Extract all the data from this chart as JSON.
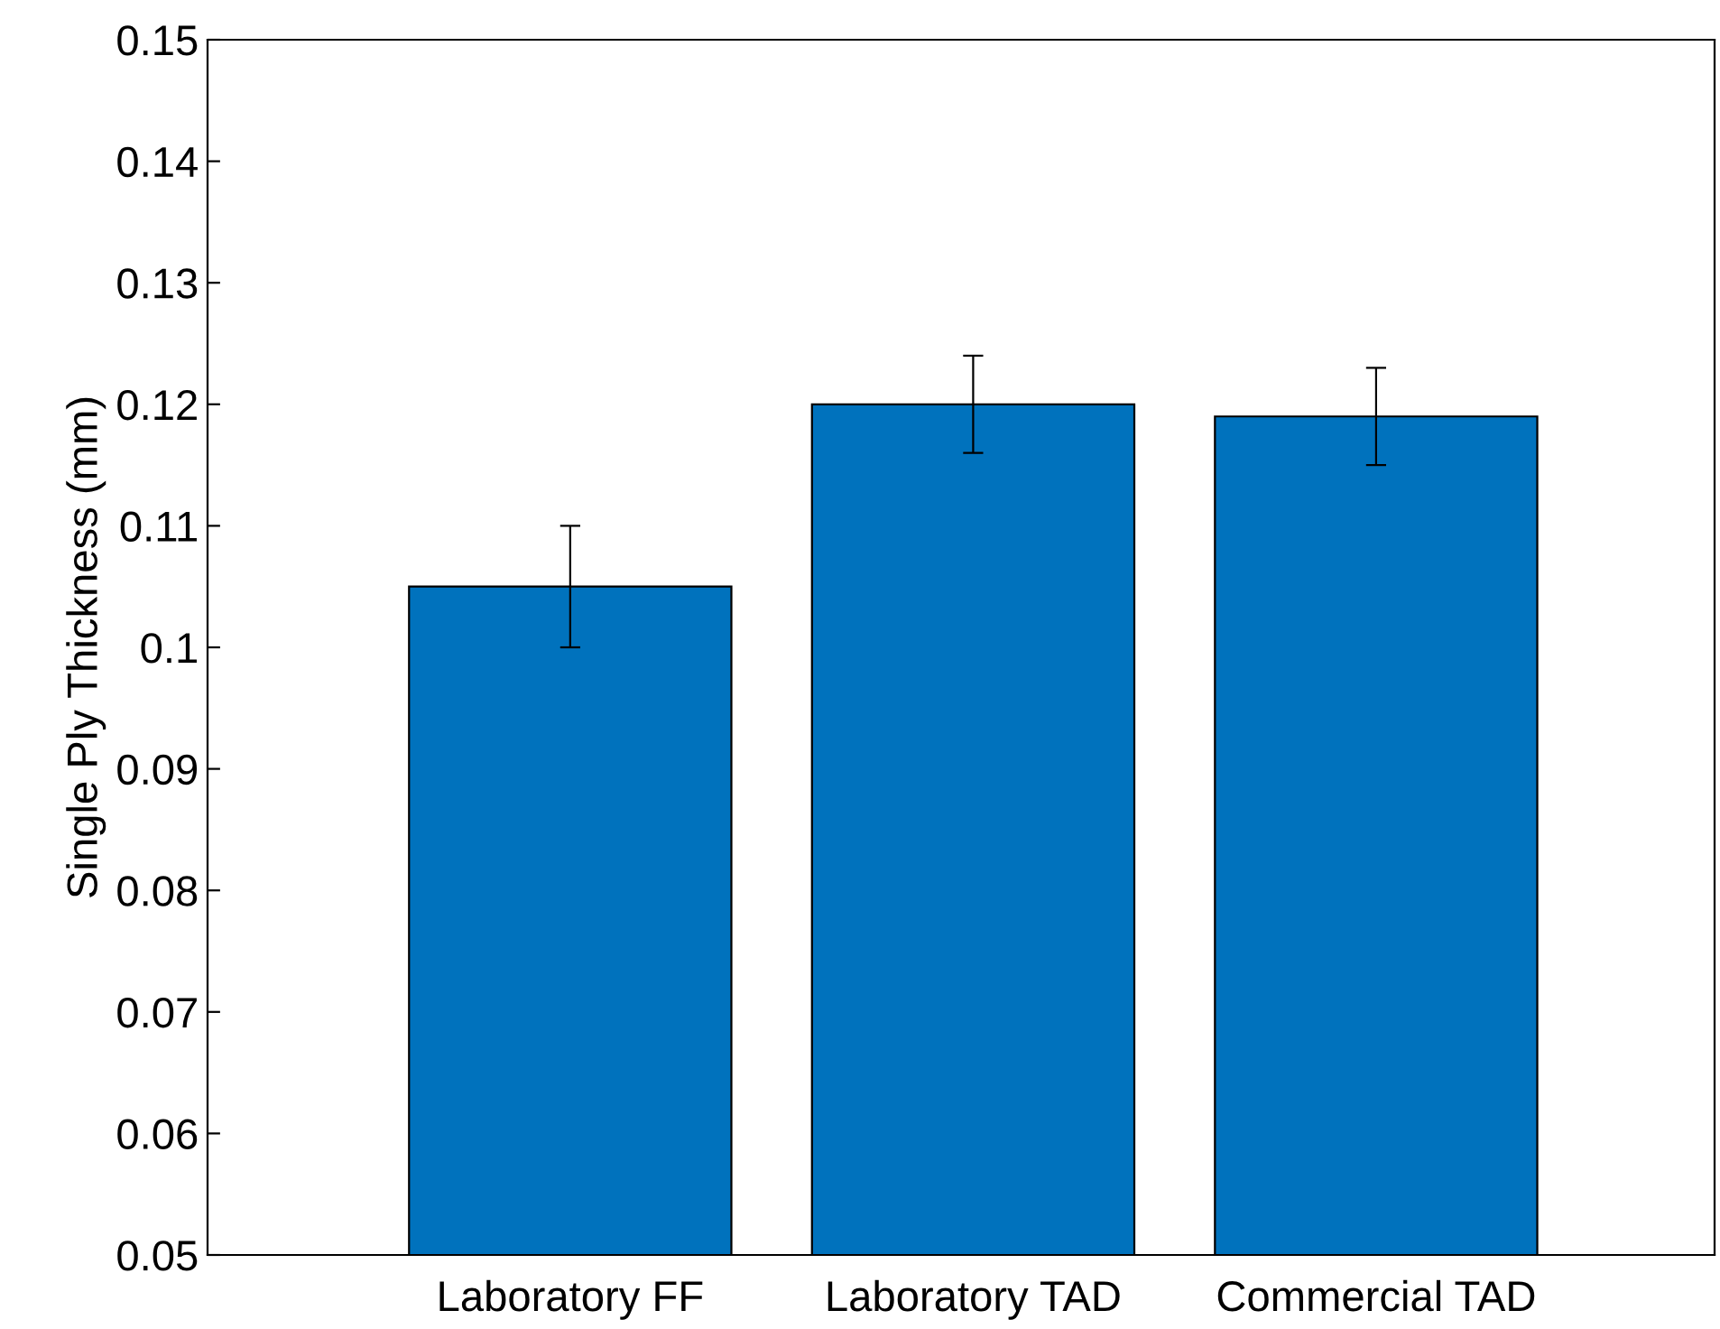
{
  "chart_data": {
    "type": "bar",
    "ylabel": "Single Ply Thickness (mm)",
    "categories": [
      "Laboratory FF",
      "Laboratory TAD",
      "Commercial TAD"
    ],
    "values": [
      0.105,
      0.12,
      0.119
    ],
    "errors": [
      0.005,
      0.004,
      0.004
    ],
    "color": "#0072bd",
    "ylim": [
      0.05,
      0.15
    ],
    "yticks": [
      0.05,
      0.06,
      0.07,
      0.08,
      0.09,
      0.1,
      0.11,
      0.12,
      0.13,
      0.14,
      0.15
    ],
    "grid": false
  }
}
